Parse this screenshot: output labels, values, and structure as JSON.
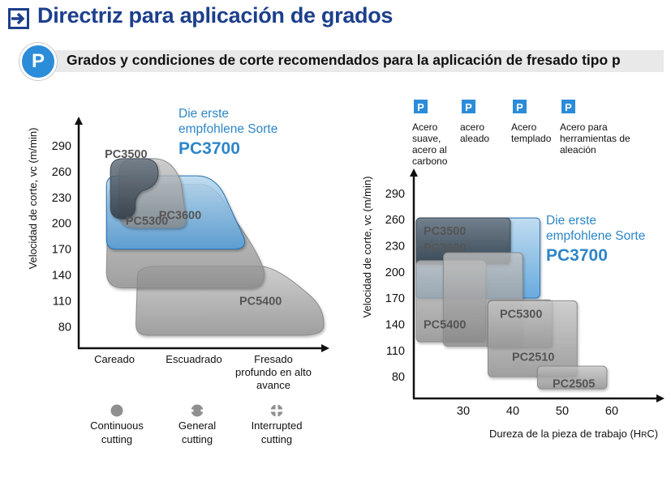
{
  "header": {
    "title": "Directriz para aplicación de grados",
    "subtitle_badge": "P",
    "subtitle": "Grados y condiciones de corte recomendados para la aplicación de fresado tipo p"
  },
  "colors": {
    "title": "#1d3f8c",
    "accent_blue": "#2b8cd9",
    "highlight_text": "#2e86c8",
    "grade_box": "#8a8a8a",
    "grade_box_dark": "#46525c",
    "pc3700_fill": "#6bb3e6"
  },
  "chart_data": [
    {
      "type": "area",
      "ylabel": "Velocidad de corte, vc (m/min)",
      "yticks": [
        290,
        260,
        230,
        200,
        170,
        140,
        110,
        80
      ],
      "ylim": [
        55,
        320
      ],
      "categories": [
        "Careado",
        "Escuadrado",
        "Fresado profundo en alto avance"
      ],
      "series": [
        {
          "name": "PC5400",
          "label": "PC5400",
          "style": "gray",
          "x": [
            0.7,
            3.1
          ],
          "y": [
            70,
            150
          ]
        },
        {
          "name": "PC5300",
          "label": "PC5300",
          "style": "gray",
          "x": [
            0.35,
            2.35
          ],
          "y": [
            125,
            245
          ]
        },
        {
          "name": "PC3700",
          "label": "PC3700",
          "style": "blue",
          "x": [
            0.35,
            2.1
          ],
          "y": [
            170,
            255
          ]
        },
        {
          "name": "PC3600",
          "label": "PC3600",
          "style": "gray",
          "x": [
            0.45,
            1.35
          ],
          "y": [
            195,
            275
          ]
        },
        {
          "name": "PC3500",
          "label": "PC3500",
          "style": "dark",
          "x": [
            0.4,
            1.0
          ],
          "y": [
            205,
            275
          ]
        }
      ],
      "recommended": {
        "line1": "Die erste",
        "line2": "empfohlene Sorte",
        "grade": "PC3700"
      },
      "legend": [
        {
          "icon": "continuous-icon",
          "line1": "Continuous",
          "line2": "cutting"
        },
        {
          "icon": "general-icon",
          "line1": "General",
          "line2": "cutting"
        },
        {
          "icon": "interrupted-icon",
          "line1": "Interrupted",
          "line2": "cutting"
        }
      ]
    },
    {
      "type": "area",
      "ylabel": "Velocidad de corte, vc (m/min)",
      "xlabel": "Dureza de la pieza de trabajo (HRC)",
      "xlabel_main": "Dureza de la pieza de trabajo (H",
      "xlabel_sub": "R",
      "xlabel_end": "C)",
      "xticks": [
        30,
        40,
        50,
        60
      ],
      "xlim": [
        20,
        70
      ],
      "yticks": [
        290,
        260,
        230,
        200,
        170,
        140,
        110,
        80
      ],
      "ylim": [
        55,
        315
      ],
      "series": [
        {
          "name": "PC3700",
          "label": "PC3700",
          "style": "blue",
          "x": [
            20.5,
            45.5
          ],
          "y": [
            170,
            262
          ]
        },
        {
          "name": "PC3500 / PC3600",
          "label1": "PC3500",
          "label2": "PC3600",
          "style": "dark",
          "x": [
            20.5,
            39.5
          ],
          "y": [
            209,
            262
          ]
        },
        {
          "name": "PC5400",
          "label": "PC5400",
          "style": "gray",
          "x": [
            20.5,
            34.5
          ],
          "y": [
            120,
            213
          ]
        },
        {
          "name": "PC5400b",
          "style": "gray",
          "x": [
            26,
            42
          ],
          "y": [
            115,
            222
          ]
        },
        {
          "name": "PC5300",
          "label": "PC5300",
          "style": "gray",
          "x": [
            35,
            48
          ],
          "y": [
            113,
            168
          ]
        },
        {
          "name": "PC2510",
          "label": "PC2510",
          "style": "gray",
          "x": [
            35,
            53
          ],
          "y": [
            80,
            167
          ]
        },
        {
          "name": "PC2505",
          "label": "PC2505",
          "style": "gray",
          "x": [
            45,
            59
          ],
          "y": [
            66,
            92
          ]
        }
      ],
      "recommended": {
        "line1": "Die erste",
        "line2": "empfohlene Sorte",
        "grade": "PC3700"
      },
      "materials": [
        {
          "badge": "P",
          "lines": [
            "Acero",
            "suave,",
            "acero al",
            "carbono"
          ]
        },
        {
          "badge": "P",
          "lines": [
            "acero",
            "aleado"
          ]
        },
        {
          "badge": "P",
          "lines": [
            "Acero",
            "templado"
          ]
        },
        {
          "badge": "P",
          "lines": [
            "Acero para",
            "herramientas de",
            "aleación"
          ]
        }
      ]
    }
  ]
}
